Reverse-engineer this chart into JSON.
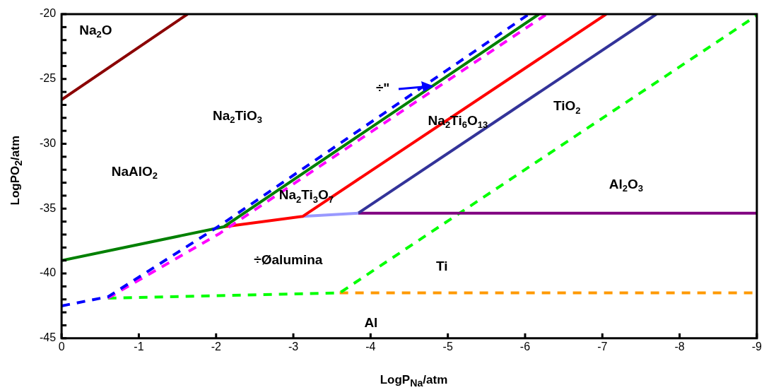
{
  "chart_data": {
    "type": "line",
    "xlabel": "LogP$_{Na}$/atm",
    "ylabel": "LogPO$_{2}$/atm",
    "xlim": [
      0,
      -9
    ],
    "xticks": [
      0,
      -1,
      -2,
      -3,
      -4,
      -5,
      -6,
      -7,
      -8,
      -9
    ],
    "ylim": [
      -45,
      -20
    ],
    "yticks": [
      -45,
      {
        "value": -44,
        "label": null
      },
      {
        "value": -43,
        "label": null
      },
      {
        "value": -42,
        "label": null
      },
      {
        "value": -41,
        "label": null
      },
      -40,
      {
        "value": -39,
        "label": null
      },
      {
        "value": -38,
        "label": null
      },
      {
        "value": -37,
        "label": null
      },
      {
        "value": -36,
        "label": null
      },
      -35,
      {
        "value": -34,
        "label": null
      },
      {
        "value": -33,
        "label": null
      },
      {
        "value": -32,
        "label": null
      },
      {
        "value": -31,
        "label": null
      },
      -30,
      {
        "value": -29,
        "label": null
      },
      {
        "value": -28,
        "label": null
      },
      {
        "value": -27,
        "label": null
      },
      {
        "value": -26,
        "label": null
      },
      -25,
      {
        "value": -24,
        "label": null
      },
      {
        "value": -23,
        "label": null
      },
      {
        "value": -22,
        "label": null
      },
      {
        "value": -21,
        "label": null
      },
      -20
    ],
    "grid": false,
    "legend": false,
    "marker": "none",
    "series": [
      {
        "color": "#8b0000",
        "line_style": "solid",
        "x": [
          0,
          -1.63
        ],
        "values": [
          -26.6,
          -20
        ]
      },
      {
        "color": "#0000ff",
        "line_style": "dashed",
        "x": [
          0,
          -0.6,
          -2.05,
          -6.05
        ],
        "values": [
          -42.5,
          -41.8,
          -36.3,
          -20
        ]
      },
      {
        "color": "#ff00ff",
        "line_style": "dashed",
        "x": [
          -0.6,
          -2.05,
          -6.28
        ],
        "values": [
          -41.9,
          -36.9,
          -20
        ]
      },
      {
        "color": "#008000",
        "line_style": "solid",
        "x": [
          0,
          -2.1,
          -6.18
        ],
        "values": [
          -39,
          -36.4,
          -20
        ]
      },
      {
        "color": "#ff0000",
        "line_style": "solid",
        "x": [
          -2.1,
          -3.12,
          -7.05
        ],
        "values": [
          -36.4,
          -35.6,
          -20
        ]
      },
      {
        "color": "#9999ff",
        "line_style": "solid",
        "x": [
          -3.12,
          -3.84
        ],
        "values": [
          -35.6,
          -35.35
        ]
      },
      {
        "color": "#333399",
        "line_style": "solid",
        "x": [
          -3.84,
          -7.7
        ],
        "values": [
          -35.35,
          -20
        ]
      },
      {
        "color": "#800080",
        "line_style": "solid",
        "x": [
          -3.84,
          -9
        ],
        "values": [
          -35.35,
          -35.35
        ]
      },
      {
        "color": "#00ff00",
        "line_style": "dashed",
        "x": [
          -0.6,
          -3.6,
          -9
        ],
        "values": [
          -41.9,
          -41.5,
          -20.1
        ]
      },
      {
        "color": "#ff9900",
        "line_style": "dashed",
        "x": [
          -3.6,
          -9
        ],
        "values": [
          -41.5,
          -41.5
        ]
      }
    ],
    "annotations": [
      "Na$_{2}$O",
      "Na$_{2}$TiO$_{3}$",
      "NaAlO$_{2}$",
      "Na$_{2}$Ti$_{3}$O$_{7}$",
      "Na$_{2}$Ti$_{6}$O$_{13}$",
      "TiO$_{2}$",
      "Al$_{2}$O$_{3}$",
      "÷Øalumina",
      "Ti",
      "Al",
      "÷\""
    ]
  }
}
